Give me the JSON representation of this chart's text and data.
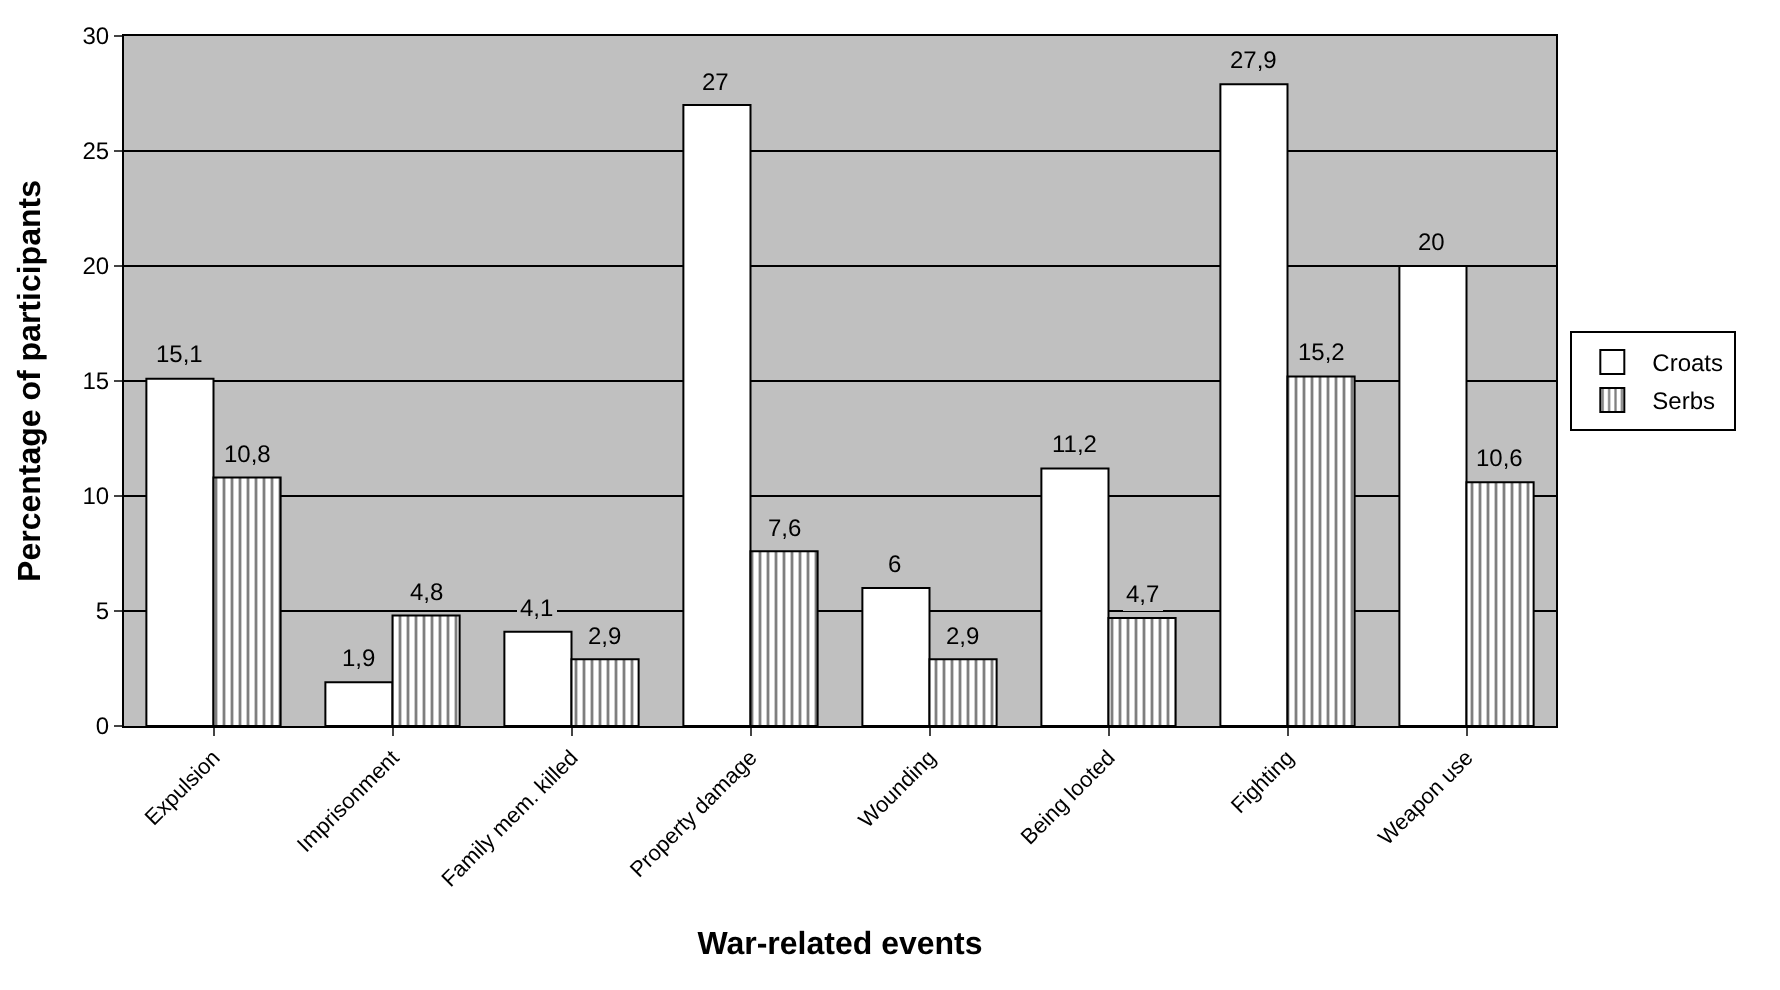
{
  "chart_data": {
    "type": "bar",
    "xlabel": "War-related events",
    "ylabel": "Percentage of participants",
    "categories": [
      "Expulsion",
      "Imprisonment",
      "Family mem. killed",
      "Property damage",
      "Wounding",
      "Being looted",
      "Fighting",
      "Weapon use"
    ],
    "series": [
      {
        "name": "Croats",
        "color": "#ffffff",
        "values": [
          15.1,
          1.9,
          4.1,
          27,
          6,
          11.2,
          27.9,
          20
        ],
        "value_labels": [
          "15,1",
          "1,9",
          "4,1",
          "27",
          "6",
          "11,2",
          "27,9",
          "20"
        ]
      },
      {
        "name": "Serbs",
        "color": "#000000",
        "values": [
          10.8,
          4.8,
          2.9,
          7.6,
          2.9,
          4.7,
          15.2,
          10.6
        ],
        "value_labels": [
          "10,8",
          "4,8",
          "2,9",
          "7,6",
          "2,9",
          "4,7",
          "15,2",
          "10,6"
        ]
      }
    ],
    "ylim": [
      0,
      30
    ],
    "yticks": [
      0,
      5,
      10,
      15,
      20,
      25,
      30
    ],
    "grid": "y",
    "legend": "right"
  }
}
